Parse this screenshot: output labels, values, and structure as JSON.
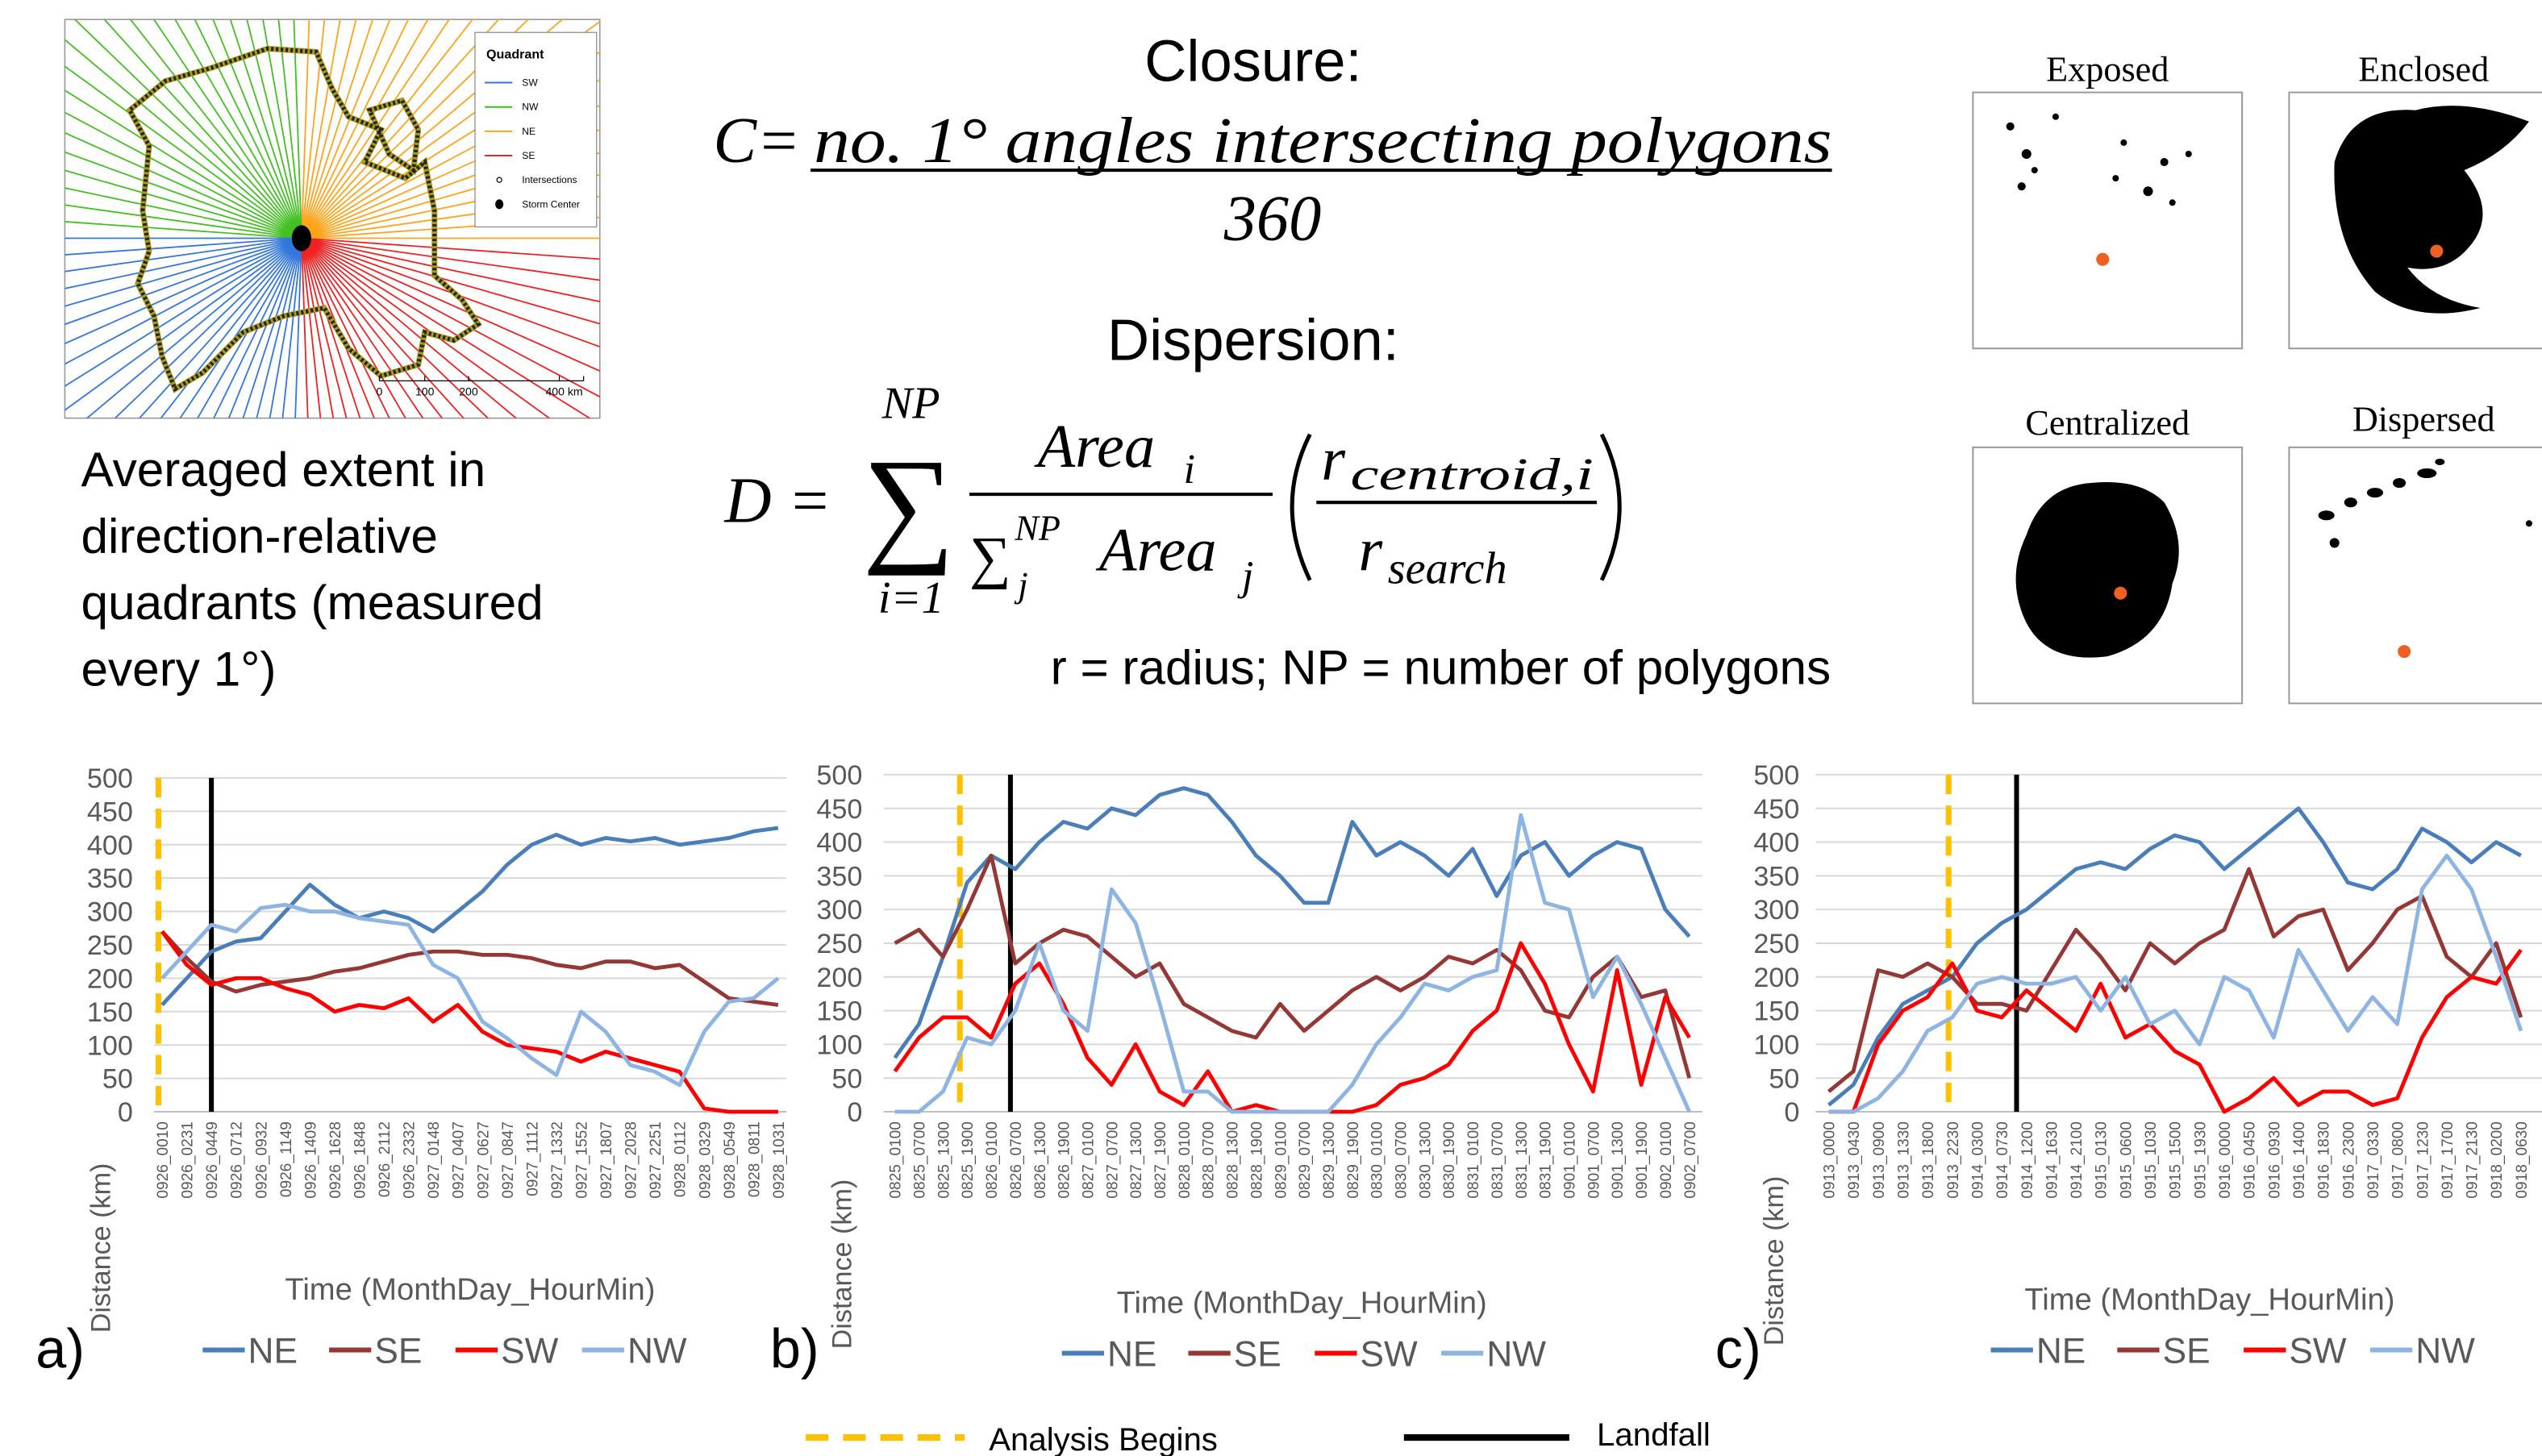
{
  "map": {
    "legend_title": "Quadrant",
    "quadrants": [
      {
        "name": "SW",
        "color": "#3377dd"
      },
      {
        "name": "NW",
        "color": "#44c022"
      },
      {
        "name": "NE",
        "color": "#ffa31a"
      },
      {
        "name": "SE",
        "color": "#ee2222"
      }
    ],
    "symbols": [
      "Intersections",
      "Storm Center"
    ],
    "scale": [
      "0",
      "100",
      "200",
      "400 km"
    ]
  },
  "caption": [
    "Averaged extent in",
    "direction-relative",
    "quadrants (measured",
    "every 1°)"
  ],
  "closure": {
    "heading": "Closure:",
    "lhs": "C=",
    "numerator": "no. 1° angles intersecting polygons",
    "denominator": "360"
  },
  "dispersion": {
    "heading": "Dispersion:",
    "lhs": "D =",
    "sum": "∑",
    "sum_upper": "NP",
    "sum_lower": "i=1",
    "num_area": "Area",
    "num_sub": "i",
    "den_sum": "∑",
    "den_sup": "NP",
    "den_sub": "j",
    "den_area": "Area",
    "den_area_sub": "j",
    "r_num": "r",
    "r_num_sub": "centroid,i",
    "r_den": "r",
    "r_den_sub": "search"
  },
  "note": "r = radius; NP = number of polygons",
  "examples": [
    {
      "title": "Exposed"
    },
    {
      "title": "Enclosed"
    },
    {
      "title": "Centralized"
    },
    {
      "title": "Dispersed"
    }
  ],
  "event_legend": {
    "analysis": "Analysis Begins",
    "landfall": "Landfall"
  },
  "chart_data": [
    {
      "type": "line",
      "panel_label": "a)",
      "y_label": "Distance (km)",
      "x_label": "Time (MonthDay_HourMin)",
      "categories": [
        "0926_0010",
        "0926_0231",
        "0926_0449",
        "0926_0712",
        "0926_0932",
        "0926_1149",
        "0926_1409",
        "0926_1628",
        "0926_1848",
        "0926_2112",
        "0926_2332",
        "0927_0148",
        "0927_0407",
        "0927_0627",
        "0927_0847",
        "0927_1112",
        "0927_1332",
        "0927_1552",
        "0927_1807",
        "0927_2028",
        "0927_2251",
        "0928_0112",
        "0928_0329",
        "0928_0549",
        "0928_0811",
        "0928_1031"
      ],
      "series": [
        {
          "name": "NE",
          "color": "#4a7ebb",
          "values": [
            160,
            200,
            240,
            255,
            260,
            300,
            340,
            310,
            290,
            300,
            290,
            270,
            300,
            330,
            370,
            400,
            415,
            400,
            410,
            405,
            410,
            400,
            405,
            410,
            420,
            425
          ]
        },
        {
          "name": "SE",
          "color": "#953735",
          "values": [
            270,
            230,
            195,
            180,
            190,
            195,
            200,
            210,
            215,
            225,
            235,
            240,
            240,
            235,
            235,
            230,
            220,
            215,
            225,
            225,
            215,
            220,
            195,
            170,
            165,
            160
          ]
        },
        {
          "name": "SW",
          "color": "#ff0000",
          "values": [
            270,
            220,
            190,
            200,
            200,
            185,
            175,
            150,
            160,
            155,
            170,
            135,
            160,
            120,
            100,
            95,
            90,
            75,
            90,
            80,
            70,
            60,
            5,
            0,
            0,
            0
          ]
        },
        {
          "name": "NW",
          "color": "#8db4e2",
          "values": [
            200,
            240,
            280,
            270,
            305,
            310,
            300,
            300,
            290,
            285,
            280,
            220,
            200,
            135,
            110,
            80,
            55,
            150,
            120,
            70,
            60,
            40,
            120,
            165,
            170,
            200
          ]
        }
      ],
      "ylim": [
        0,
        500
      ],
      "yticks": [
        0,
        50,
        100,
        150,
        200,
        250,
        300,
        350,
        400,
        450,
        500
      ],
      "grid": true,
      "analysis_begins_x": -0.15,
      "landfall_x": 2.0
    },
    {
      "type": "line",
      "panel_label": "b)",
      "y_label": "Distance (km)",
      "x_label": "Time (MonthDay_HourMin)",
      "categories": [
        "0825_0100",
        "0825_0700",
        "0825_1300",
        "0825_1900",
        "0826_0100",
        "0826_0700",
        "0826_1300",
        "0826_1900",
        "0827_0100",
        "0827_0700",
        "0827_1300",
        "0827_1900",
        "0828_0100",
        "0828_0700",
        "0828_1300",
        "0828_1900",
        "0829_0100",
        "0829_0700",
        "0829_1300",
        "0829_1900",
        "0830_0100",
        "0830_0700",
        "0830_1300",
        "0830_1900",
        "0831_0100",
        "0831_0700",
        "0831_1300",
        "0831_1900",
        "0901_0100",
        "0901_0700",
        "0901_1300",
        "0901_1900",
        "0902_0100",
        "0902_0700"
      ],
      "series": [
        {
          "name": "NE",
          "color": "#4a7ebb",
          "values": [
            80,
            130,
            230,
            340,
            380,
            360,
            400,
            430,
            420,
            450,
            440,
            470,
            480,
            470,
            430,
            380,
            350,
            310,
            310,
            430,
            380,
            400,
            380,
            350,
            390,
            320,
            380,
            400,
            350,
            380,
            400,
            390,
            300,
            260
          ]
        },
        {
          "name": "SE",
          "color": "#953735",
          "values": [
            250,
            270,
            230,
            300,
            380,
            220,
            250,
            270,
            260,
            230,
            200,
            220,
            160,
            140,
            120,
            110,
            160,
            120,
            150,
            180,
            200,
            180,
            200,
            230,
            220,
            240,
            210,
            150,
            140,
            200,
            230,
            170,
            180,
            50
          ]
        },
        {
          "name": "SW",
          "color": "#ff0000",
          "values": [
            60,
            110,
            140,
            140,
            110,
            190,
            220,
            160,
            80,
            40,
            100,
            30,
            10,
            60,
            0,
            10,
            0,
            0,
            0,
            0,
            10,
            40,
            50,
            70,
            120,
            150,
            250,
            190,
            100,
            30,
            210,
            40,
            170,
            110
          ]
        },
        {
          "name": "NW",
          "color": "#8db4e2",
          "values": [
            0,
            0,
            30,
            110,
            100,
            150,
            250,
            150,
            120,
            330,
            280,
            160,
            30,
            30,
            0,
            0,
            0,
            0,
            0,
            40,
            100,
            140,
            190,
            180,
            200,
            210,
            440,
            310,
            300,
            170,
            230,
            160,
            80,
            0
          ]
        }
      ],
      "ylim": [
        0,
        500
      ],
      "yticks": [
        0,
        50,
        100,
        150,
        200,
        250,
        300,
        350,
        400,
        450,
        500
      ],
      "grid": true,
      "analysis_begins_x": 2.7,
      "landfall_x": 4.8
    },
    {
      "type": "line",
      "panel_label": "c)",
      "y_label": "Distance (km)",
      "x_label": "Time (MonthDay_HourMin)",
      "categories": [
        "0913_0000",
        "0913_0430",
        "0913_0900",
        "0913_1330",
        "0913_1800",
        "0913_2230",
        "0914_0300",
        "0914_0730",
        "0914_1200",
        "0914_1630",
        "0914_2100",
        "0915_0130",
        "0915_0600",
        "0915_1030",
        "0915_1500",
        "0915_1930",
        "0916_0000",
        "0916_0450",
        "0916_0930",
        "0916_1400",
        "0916_1830",
        "0916_2300",
        "0917_0330",
        "0917_0800",
        "0917_1230",
        "0917_1700",
        "0917_2130",
        "0918_0200",
        "0918_0630"
      ],
      "series": [
        {
          "name": "NE",
          "color": "#4a7ebb",
          "values": [
            10,
            40,
            110,
            160,
            180,
            200,
            250,
            280,
            300,
            330,
            360,
            370,
            360,
            390,
            410,
            400,
            360,
            390,
            420,
            450,
            400,
            340,
            330,
            360,
            420,
            400,
            370,
            400,
            380
          ]
        },
        {
          "name": "SE",
          "color": "#953735",
          "values": [
            30,
            60,
            210,
            200,
            220,
            200,
            160,
            160,
            150,
            210,
            270,
            230,
            180,
            250,
            220,
            250,
            270,
            360,
            260,
            290,
            300,
            210,
            250,
            300,
            320,
            230,
            200,
            250,
            140
          ]
        },
        {
          "name": "SW",
          "color": "#ff0000",
          "values": [
            0,
            0,
            100,
            150,
            170,
            220,
            150,
            140,
            180,
            150,
            120,
            190,
            110,
            130,
            90,
            70,
            0,
            20,
            50,
            10,
            30,
            30,
            10,
            20,
            110,
            170,
            200,
            190,
            240
          ]
        },
        {
          "name": "NW",
          "color": "#8db4e2",
          "values": [
            0,
            0,
            20,
            60,
            120,
            140,
            190,
            200,
            190,
            190,
            200,
            150,
            200,
            130,
            150,
            100,
            200,
            180,
            110,
            240,
            180,
            120,
            170,
            130,
            330,
            380,
            330,
            230,
            120
          ]
        }
      ],
      "ylim": [
        0,
        500
      ],
      "yticks": [
        0,
        50,
        100,
        150,
        200,
        250,
        300,
        350,
        400,
        450,
        500
      ],
      "grid": true,
      "analysis_begins_x": 4.85,
      "landfall_x": 7.6
    }
  ]
}
